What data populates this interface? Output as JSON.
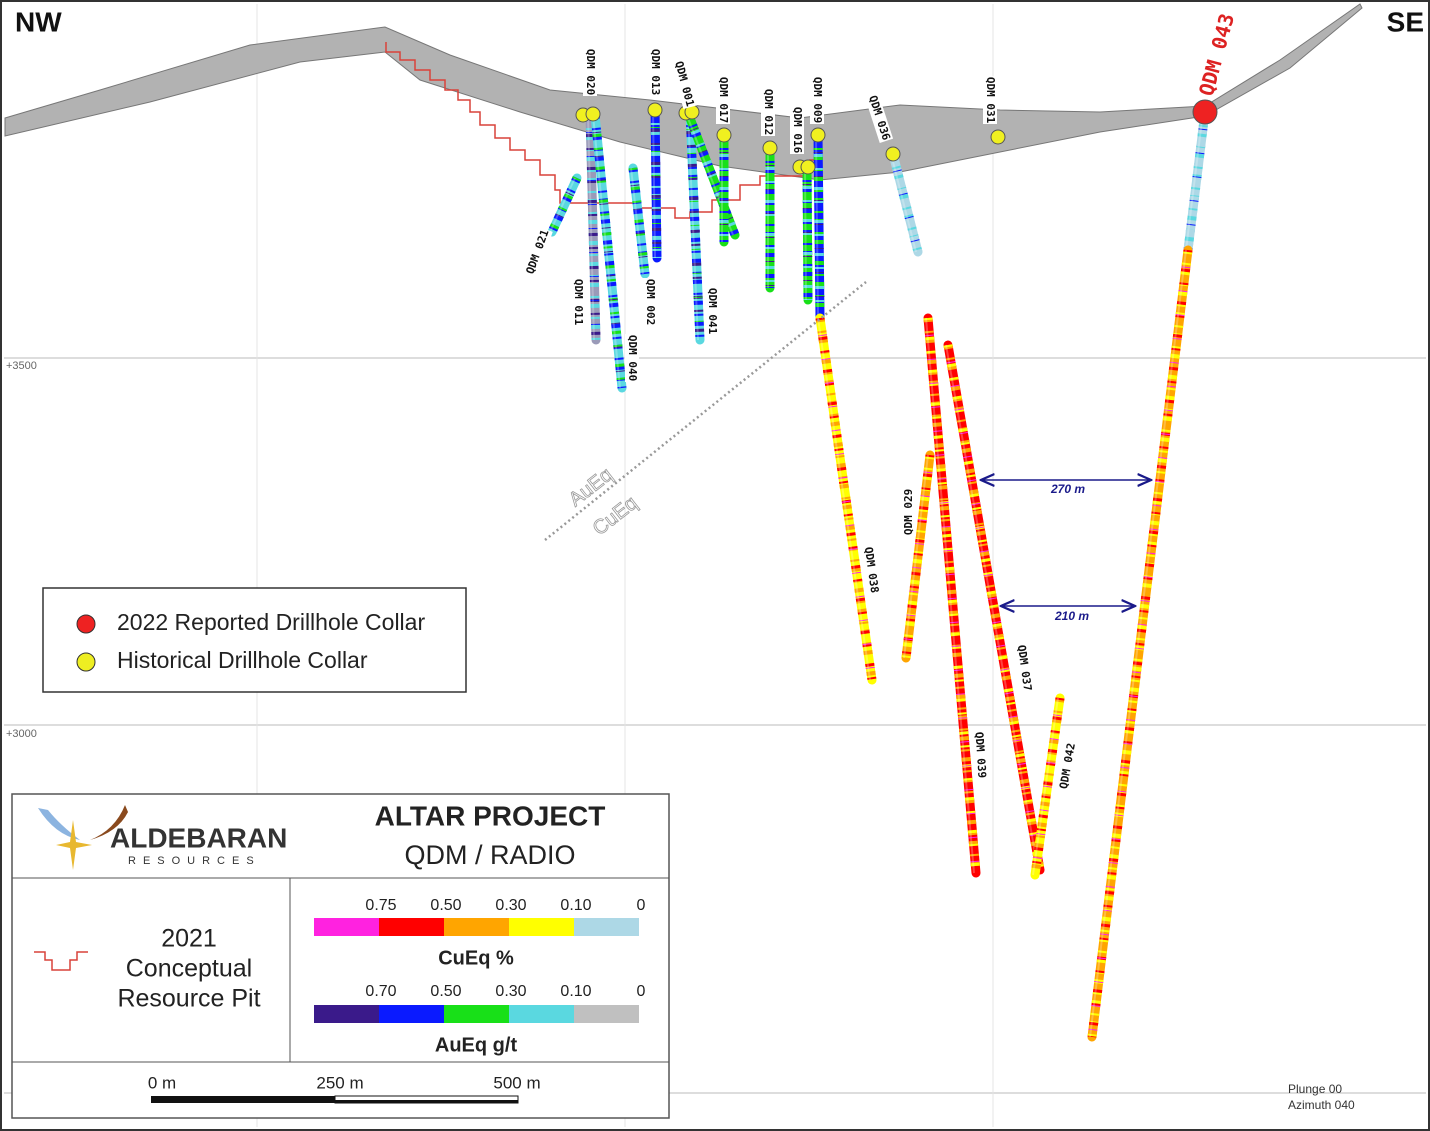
{
  "orientation": {
    "left": "NW",
    "right": "SE"
  },
  "elevations": [
    "+3500",
    "+3000"
  ],
  "drillholes": [
    "QDM 020",
    "QDM 013",
    "QDM 001",
    "QDM 017",
    "QDM 012",
    "QDM 009",
    "QDM 016",
    "QDM 036",
    "QDM 031",
    "QDM 043",
    "QDM 021",
    "QDM 011",
    "QDM 002",
    "QDM 041",
    "QDM 040",
    "QDM 029",
    "QDM 038",
    "QDM 037",
    "QDM 039",
    "QDM 042"
  ],
  "trend_labels": [
    "AuEq",
    "CuEq"
  ],
  "distances": [
    "270 m",
    "210 m"
  ],
  "legend": [
    "2022 Reported Drillhole Collar",
    "Historical Drillhole Collar"
  ],
  "title_block": {
    "company": "ALDEBARAN",
    "company_sub": "RESOURCES",
    "project": "ALTAR PROJECT",
    "section": "QDM / RADIO",
    "pit_legend": [
      "2021",
      "Conceptual",
      "Resource Pit"
    ],
    "cueq": {
      "title": "CuEq %",
      "labels": [
        "0.75",
        "0.50",
        "0.30",
        "0.10",
        "0"
      ],
      "colors": [
        "#ff22e0",
        "#ff0000",
        "#ffa500",
        "#ffff00",
        "#add8e6"
      ]
    },
    "aueq": {
      "title": "AuEq g/t",
      "labels": [
        "0.70",
        "0.50",
        "0.30",
        "0.10",
        "0"
      ],
      "colors": [
        "#3a1a8a",
        "#0a1aff",
        "#18e018",
        "#5ad8e0",
        "#c0c0c0"
      ]
    },
    "scale_bar": [
      "0 m",
      "250 m",
      "500 m"
    ]
  },
  "view": [
    "Plunge 00",
    "Azimuth 040"
  ]
}
